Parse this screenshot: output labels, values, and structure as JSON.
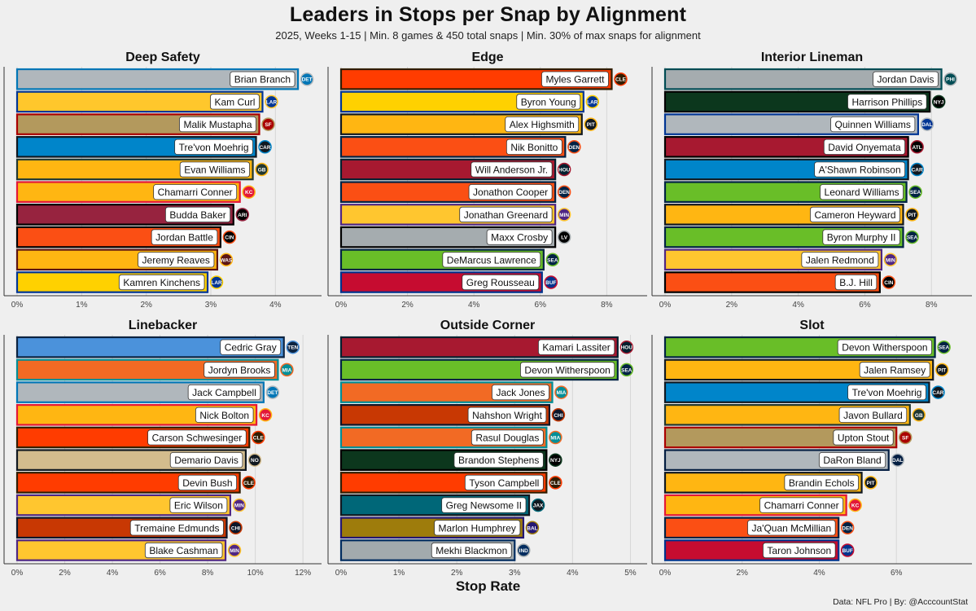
{
  "title": "Leaders in Stops per Snap by Alignment",
  "subtitle": "2025, Weeks 1-15 | Min. 8 games & 450 total snaps | Min. 30% of max snaps for alignment",
  "xlabel": "Stop Rate",
  "caption": "Data: NFL Pro | By: @AcccountStat",
  "chart_data": [
    {
      "type": "bar",
      "title": "Deep Safety",
      "xlim": [
        0,
        4.5
      ],
      "ticks": [
        0,
        1,
        2,
        3,
        4
      ],
      "tick_labels": [
        "0%",
        "1%",
        "2%",
        "3%",
        "4%"
      ],
      "bars": [
        {
          "name": "Brian Branch",
          "value": 4.35,
          "team": "DET",
          "fill": "#b0b7bc",
          "border": "#0076b6"
        },
        {
          "name": "Kam Curl",
          "value": 3.8,
          "team": "LAR",
          "fill": "#ffc72c",
          "border": "#003594"
        },
        {
          "name": "Malik Mustapha",
          "value": 3.75,
          "team": "SF",
          "fill": "#b3995d",
          "border": "#aa0000"
        },
        {
          "name": "Tre'von Moehrig",
          "value": 3.7,
          "team": "CAR",
          "fill": "#0085ca",
          "border": "#101820"
        },
        {
          "name": "Evan Williams",
          "value": 3.65,
          "team": "GB",
          "fill": "#ffb612",
          "border": "#203731"
        },
        {
          "name": "Chamarri Conner",
          "value": 3.45,
          "team": "KC",
          "fill": "#ffb612",
          "border": "#e31837"
        },
        {
          "name": "Budda Baker",
          "value": 3.35,
          "team": "ARI",
          "fill": "#97233f",
          "border": "#000000"
        },
        {
          "name": "Jordan Battle",
          "value": 3.15,
          "team": "CIN",
          "fill": "#fb4f14",
          "border": "#000000"
        },
        {
          "name": "Jeremy Reaves",
          "value": 3.1,
          "team": "WAS",
          "fill": "#ffb612",
          "border": "#5a1414"
        },
        {
          "name": "Kamren Kinchens",
          "value": 2.95,
          "team": "LAR",
          "fill": "#ffd100",
          "border": "#003594"
        }
      ]
    },
    {
      "type": "bar",
      "title": "Edge",
      "xlim": [
        0,
        8.8
      ],
      "ticks": [
        0,
        2,
        4,
        6,
        8
      ],
      "tick_labels": [
        "0%",
        "2%",
        "4%",
        "6%",
        "8%"
      ],
      "bars": [
        {
          "name": "Myles Garrett",
          "value": 8.15,
          "team": "CLE",
          "fill": "#ff3c00",
          "border": "#311d00"
        },
        {
          "name": "Byron Young",
          "value": 7.3,
          "team": "LAR",
          "fill": "#ffd100",
          "border": "#003594"
        },
        {
          "name": "Alex Highsmith",
          "value": 7.25,
          "team": "PIT",
          "fill": "#ffb612",
          "border": "#101820"
        },
        {
          "name": "Nik Bonitto",
          "value": 6.75,
          "team": "DEN",
          "fill": "#fb4f14",
          "border": "#002244"
        },
        {
          "name": "Will Anderson Jr.",
          "value": 6.45,
          "team": "HOU",
          "fill": "#a71930",
          "border": "#03202f"
        },
        {
          "name": "Jonathon Cooper",
          "value": 6.45,
          "team": "DEN",
          "fill": "#fb4f14",
          "border": "#002244"
        },
        {
          "name": "Jonathan Greenard",
          "value": 6.45,
          "team": "MIN",
          "fill": "#ffc62f",
          "border": "#4f2683"
        },
        {
          "name": "Maxx Crosby",
          "value": 6.45,
          "team": "LV",
          "fill": "#a5acaf",
          "border": "#000000"
        },
        {
          "name": "DeMarcus Lawrence",
          "value": 6.1,
          "team": "SEA",
          "fill": "#69be28",
          "border": "#002244"
        },
        {
          "name": "Greg Rousseau",
          "value": 6.05,
          "team": "BUF",
          "fill": "#c60c30",
          "border": "#00338d"
        }
      ]
    },
    {
      "type": "bar",
      "title": "Interior Lineman",
      "xlim": [
        0,
        8.8
      ],
      "ticks": [
        0,
        2,
        4,
        6,
        8
      ],
      "tick_labels": [
        "0%",
        "2%",
        "4%",
        "6%",
        "8%"
      ],
      "bars": [
        {
          "name": "Jordan Davis",
          "value": 8.3,
          "team": "PHI",
          "fill": "#a5acaf",
          "border": "#004c54"
        },
        {
          "name": "Harrison Phillips",
          "value": 7.95,
          "team": "NYJ",
          "fill": "#0c371d",
          "border": "#000000"
        },
        {
          "name": "Quinnen Williams",
          "value": 7.6,
          "team": "DAL",
          "fill": "#b0b7bc",
          "border": "#003594"
        },
        {
          "name": "David Onyemata",
          "value": 7.3,
          "team": "ATL",
          "fill": "#a71930",
          "border": "#000000"
        },
        {
          "name": "A'Shawn Robinson",
          "value": 7.3,
          "team": "CAR",
          "fill": "#0085ca",
          "border": "#101820"
        },
        {
          "name": "Leonard Williams",
          "value": 7.25,
          "team": "SEA",
          "fill": "#69be28",
          "border": "#002244"
        },
        {
          "name": "Cameron Heyward",
          "value": 7.15,
          "team": "PIT",
          "fill": "#ffb612",
          "border": "#101820"
        },
        {
          "name": "Byron Murphy II",
          "value": 7.15,
          "team": "SEA",
          "fill": "#69be28",
          "border": "#002244"
        },
        {
          "name": "Jalen Redmond",
          "value": 6.5,
          "team": "MIN",
          "fill": "#ffc62f",
          "border": "#4f2683"
        },
        {
          "name": "B.J. Hill",
          "value": 6.45,
          "team": "CIN",
          "fill": "#fb4f14",
          "border": "#000000"
        }
      ]
    },
    {
      "type": "bar",
      "title": "Linebacker",
      "xlim": [
        0,
        12.2
      ],
      "ticks": [
        0,
        2,
        4,
        6,
        8,
        10,
        12
      ],
      "tick_labels": [
        "0%",
        "2%",
        "4%",
        "6%",
        "8%",
        "10%",
        "12%"
      ],
      "bars": [
        {
          "name": "Cedric Gray",
          "value": 11.2,
          "team": "TEN",
          "fill": "#4b92db",
          "border": "#0c2340"
        },
        {
          "name": "Jordyn Brooks",
          "value": 10.95,
          "team": "MIA",
          "fill": "#f26a24",
          "border": "#008e97"
        },
        {
          "name": "Jack Campbell",
          "value": 10.35,
          "team": "DET",
          "fill": "#b0b7bc",
          "border": "#0076b6"
        },
        {
          "name": "Nick Bolton",
          "value": 10.05,
          "team": "KC",
          "fill": "#ffb612",
          "border": "#e31837"
        },
        {
          "name": "Carson Schwesinger",
          "value": 9.75,
          "team": "CLE",
          "fill": "#ff3c00",
          "border": "#311d00"
        },
        {
          "name": "Demario Davis",
          "value": 9.6,
          "team": "NO",
          "fill": "#d3bc8d",
          "border": "#101820"
        },
        {
          "name": "Devin Bush",
          "value": 9.35,
          "team": "CLE",
          "fill": "#ff3c00",
          "border": "#311d00"
        },
        {
          "name": "Eric Wilson",
          "value": 8.95,
          "team": "MIN",
          "fill": "#ffc62f",
          "border": "#4f2683"
        },
        {
          "name": "Tremaine Edmunds",
          "value": 8.8,
          "team": "CHI",
          "fill": "#c83803",
          "border": "#0b162a"
        },
        {
          "name": "Blake Cashman",
          "value": 8.75,
          "team": "MIN",
          "fill": "#ffc62f",
          "border": "#4f2683"
        }
      ]
    },
    {
      "type": "bar",
      "title": "Outside Corner",
      "xlim": [
        0,
        5.05
      ],
      "ticks": [
        0,
        1,
        2,
        3,
        4,
        5
      ],
      "tick_labels": [
        "0%",
        "1%",
        "2%",
        "3%",
        "4%",
        "5%"
      ],
      "bars": [
        {
          "name": "Kamari Lassiter",
          "value": 4.78,
          "team": "HOU",
          "fill": "#a71930",
          "border": "#03202f"
        },
        {
          "name": "Devon Witherspoon",
          "value": 4.78,
          "team": "SEA",
          "fill": "#69be28",
          "border": "#002244"
        },
        {
          "name": "Jack Jones",
          "value": 3.65,
          "team": "MIA",
          "fill": "#f26a24",
          "border": "#008e97"
        },
        {
          "name": "Nahshon Wright",
          "value": 3.6,
          "team": "CHI",
          "fill": "#c83803",
          "border": "#0b162a"
        },
        {
          "name": "Rasul Douglas",
          "value": 3.55,
          "team": "MIA",
          "fill": "#f26a24",
          "border": "#008e97"
        },
        {
          "name": "Brandon Stephens",
          "value": 3.55,
          "team": "NYJ",
          "fill": "#0c371d",
          "border": "#000000"
        },
        {
          "name": "Tyson Campbell",
          "value": 3.55,
          "team": "CLE",
          "fill": "#ff3c00",
          "border": "#311d00"
        },
        {
          "name": "Greg Newsome II",
          "value": 3.25,
          "team": "JAX",
          "fill": "#006778",
          "border": "#101820"
        },
        {
          "name": "Marlon Humphrey",
          "value": 3.15,
          "team": "BAL",
          "fill": "#9e7c0c",
          "border": "#241773"
        },
        {
          "name": "Mekhi Blackmon",
          "value": 3.0,
          "team": "IND",
          "fill": "#a2aaad",
          "border": "#002c5f"
        }
      ]
    },
    {
      "type": "bar",
      "title": "Slot",
      "xlim": [
        0,
        7.6
      ],
      "ticks": [
        0,
        2,
        4,
        6
      ],
      "tick_labels": [
        "0%",
        "2%",
        "4%",
        "6%"
      ],
      "bars": [
        {
          "name": "Devon Witherspoon",
          "value": 7.0,
          "team": "SEA",
          "fill": "#69be28",
          "border": "#002244"
        },
        {
          "name": "Jalen Ramsey",
          "value": 6.95,
          "team": "PIT",
          "fill": "#ffb612",
          "border": "#101820"
        },
        {
          "name": "Tre'von Moehrig",
          "value": 6.85,
          "team": "CAR",
          "fill": "#0085ca",
          "border": "#101820"
        },
        {
          "name": "Javon Bullard",
          "value": 6.35,
          "team": "GB",
          "fill": "#ffb612",
          "border": "#203731"
        },
        {
          "name": "Upton Stout",
          "value": 6.0,
          "team": "SF",
          "fill": "#b3995d",
          "border": "#aa0000"
        },
        {
          "name": "DaRon Bland",
          "value": 5.8,
          "team": "DAL",
          "fill": "#b0b7bc",
          "border": "#041e42"
        },
        {
          "name": "Brandin Echols",
          "value": 5.1,
          "team": "PIT",
          "fill": "#ffb612",
          "border": "#101820"
        },
        {
          "name": "Chamarri Conner",
          "value": 4.7,
          "team": "KC",
          "fill": "#ffb612",
          "border": "#e31837"
        },
        {
          "name": "Ja'Quan McMillian",
          "value": 4.5,
          "team": "DEN",
          "fill": "#fb4f14",
          "border": "#002244"
        },
        {
          "name": "Taron Johnson",
          "value": 4.5,
          "team": "BUF",
          "fill": "#c60c30",
          "border": "#00338d"
        }
      ]
    }
  ]
}
